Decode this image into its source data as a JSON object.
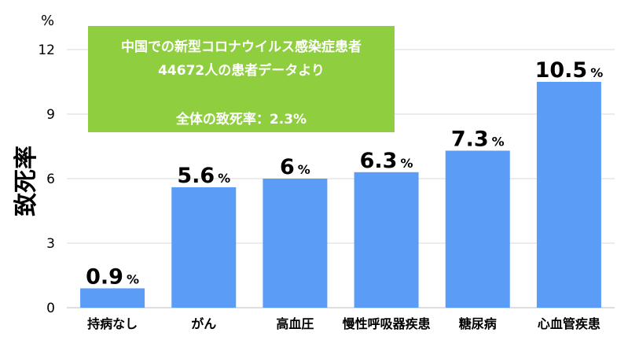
{
  "chart_data": {
    "type": "bar",
    "categories": [
      "持病なし",
      "がん",
      "高血圧",
      "慢性呼吸器疾患",
      "糖尿病",
      "心血管疾患"
    ],
    "values": [
      0.9,
      5.6,
      6,
      6.3,
      7.3,
      10.5
    ],
    "value_labels": [
      "0.9",
      "5.6",
      "6",
      "6.3",
      "7.3",
      "10.5"
    ],
    "value_suffix": "%",
    "ylabel": "致死率",
    "y_unit": "%",
    "ylim": [
      0,
      12
    ],
    "yticks": [
      "0",
      "3",
      "6",
      "9",
      "12"
    ],
    "grid": true,
    "bar_color": "#5b9cf6",
    "annotation": {
      "line1": "中国での新型コロナウイルス感染症患者",
      "line2": "44672人の患者データより",
      "line3": "全体の致死率：2.3%",
      "color": "#8fce3f"
    }
  }
}
